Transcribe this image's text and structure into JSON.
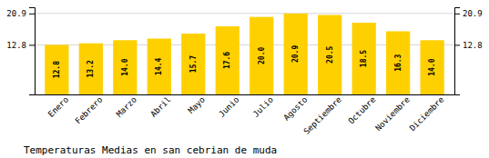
{
  "chart_data": {
    "type": "bar",
    "title": "Temperaturas Medias en san cebrian de muda",
    "categories": [
      "Enero",
      "Febrero",
      "Marzo",
      "Abril",
      "Mayo",
      "Junio",
      "Julio",
      "Agosto",
      "Septiembre",
      "Octubre",
      "Noviembre",
      "Diciembre"
    ],
    "values": [
      12.8,
      13.2,
      14.0,
      14.4,
      15.7,
      17.6,
      20.0,
      20.9,
      20.5,
      18.5,
      16.3,
      14.0
    ],
    "value_labels": [
      "12.8",
      "13.2",
      "14.0",
      "14.4",
      "15.7",
      "17.6",
      "20.0",
      "20.9",
      "20.5",
      "18.5",
      "16.3",
      "14.0"
    ],
    "data_labels": true,
    "color": "#FFD000",
    "ylim": [
      0,
      22.5
    ],
    "yticks": [
      12.8,
      20.9
    ],
    "grid": true
  }
}
